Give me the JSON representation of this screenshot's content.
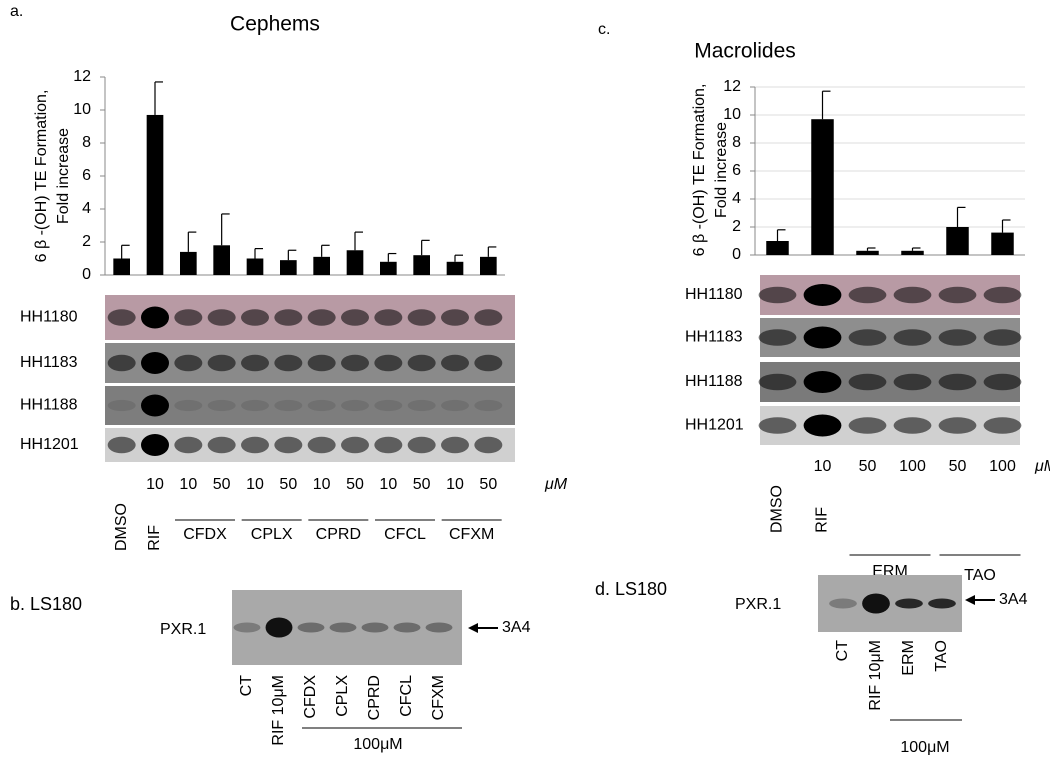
{
  "chart_data": [
    {
      "type": "bar",
      "panel": "a.",
      "title": "Cephems",
      "y_label": [
        "6 β -(OH) TE Formation,",
        "Fold increase"
      ],
      "categories": [
        null,
        "10",
        "10",
        "50",
        "10",
        "50",
        "10",
        "50",
        "10",
        "50",
        "10",
        "50"
      ],
      "rotated_labels": [
        "DMSO",
        "RIF"
      ],
      "group_labels": [
        "CFDX",
        "CPLX",
        "CPRD",
        "CFCL",
        "CFXM"
      ],
      "unit": "μM",
      "values": [
        1.0,
        9.7,
        1.4,
        1.8,
        1.0,
        0.9,
        1.1,
        1.5,
        0.8,
        1.2,
        0.8,
        1.1
      ],
      "errors": [
        0.8,
        2.0,
        1.2,
        1.9,
        0.6,
        0.6,
        0.7,
        1.1,
        0.5,
        0.9,
        0.4,
        0.6
      ],
      "color": "#000000",
      "ylim": [
        0,
        12
      ],
      "yticks": [
        0,
        2,
        4,
        6,
        8,
        10,
        12
      ],
      "grid": false,
      "blot_rows": [
        "HH1180",
        "HH1183",
        "HH1188",
        "HH1201"
      ]
    },
    {
      "type": "bar",
      "panel": "c.",
      "title": "Macrolides",
      "y_label": [
        "6 β -(OH) TE Formation,",
        "Fold increase"
      ],
      "categories": [
        null,
        "10",
        "50",
        "100",
        "50",
        "100"
      ],
      "rotated_labels": [
        "DMSO",
        "RIF"
      ],
      "group_labels": [
        "ERM",
        "TAO"
      ],
      "unit": "μM",
      "values": [
        1.0,
        9.7,
        0.3,
        0.3,
        2.0,
        1.6
      ],
      "errors": [
        0.8,
        2.0,
        0.2,
        0.2,
        1.4,
        0.9
      ],
      "color": "#000000",
      "ylim": [
        0,
        12
      ],
      "yticks": [
        0,
        2,
        4,
        6,
        8,
        10,
        12
      ],
      "grid": true,
      "blot_rows": [
        "HH1180",
        "HH1183",
        "HH1188",
        "HH1201"
      ]
    }
  ],
  "blots": [
    {
      "panel": "b. LS180",
      "row_label": "PXR.1",
      "band_label": "3A4",
      "lanes": [
        "CT",
        "RIF 10μM",
        "CFDX",
        "CPLX",
        "CPRD",
        "CFCL",
        "CFXM"
      ],
      "dose": "100μM"
    },
    {
      "panel": "d. LS180",
      "row_label": "PXR.1",
      "band_label": "3A4",
      "lanes": [
        "CT",
        "RIF 10μM",
        "ERM",
        "TAO"
      ],
      "dose": "100μM"
    }
  ]
}
